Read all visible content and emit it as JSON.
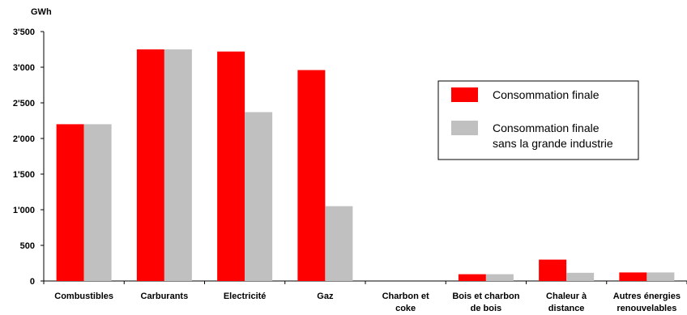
{
  "chart_data": {
    "type": "bar",
    "ylabel": "GWh",
    "ylim": [
      0,
      3500
    ],
    "yticks": [
      0,
      500,
      1000,
      1500,
      2000,
      2500,
      3000,
      3500
    ],
    "ytick_labels": [
      "0",
      "500",
      "1'000",
      "1'500",
      "2'000",
      "2'500",
      "3'000",
      "3'500"
    ],
    "categories": [
      [
        "Combustibles"
      ],
      [
        "Carburants"
      ],
      [
        "Electricité"
      ],
      [
        "Gaz"
      ],
      [
        "Charbon et",
        "coke"
      ],
      [
        "Bois et charbon",
        "de bois"
      ],
      [
        "Chaleur à",
        "distance"
      ],
      [
        "Autres énergies",
        "renouvelables"
      ]
    ],
    "series": [
      {
        "name": "Consommation finale",
        "color": "#ff0000",
        "values": [
          2200,
          3250,
          3220,
          2960,
          0,
          95,
          300,
          120
        ]
      },
      {
        "name": "Consommation finale\nsans la grande industrie",
        "color": "#c0c0c0",
        "values": [
          2200,
          3250,
          2370,
          1050,
          0,
          95,
          115,
          120
        ]
      }
    ],
    "legend": {
      "placement": "right",
      "entries": [
        [
          "Consommation finale"
        ],
        [
          "Consommation finale",
          "sans la grande industrie"
        ]
      ]
    },
    "grid": false
  }
}
